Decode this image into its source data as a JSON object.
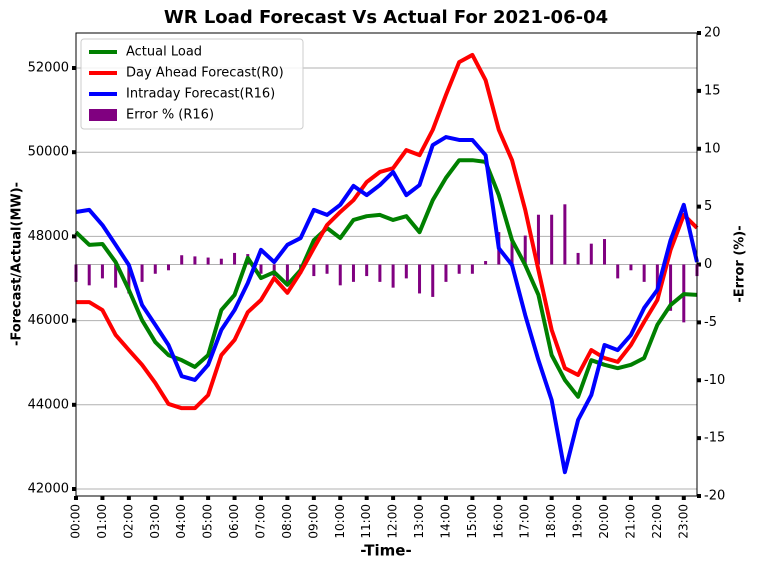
{
  "chart_data": {
    "type": "line",
    "title": "WR Load Forecast Vs Actual For 2021-06-04",
    "x_label": "-Time-",
    "y_label": "-Forecast/Actual(MW)-",
    "y2_label": "-Error (%)-",
    "categories": [
      "00:00",
      null,
      "01:00",
      null,
      "02:00",
      null,
      "03:00",
      null,
      "04:00",
      null,
      "05:00",
      null,
      "06:00",
      null,
      "07:00",
      null,
      "08:00",
      null,
      "09:00",
      null,
      "10:00",
      null,
      "11:00",
      null,
      "12:00",
      null,
      "13:00",
      null,
      "14:00",
      null,
      "15:00",
      null,
      "16:00",
      null,
      "17:00",
      null,
      "18:00",
      null,
      "19:00",
      null,
      "20:00",
      null,
      "21:00",
      null,
      "22:00",
      null,
      "23:00",
      null
    ],
    "ylim": [
      41834,
      52831
    ],
    "yticks": [
      42000,
      44000,
      46000,
      48000,
      50000,
      52000
    ],
    "y2lim": [
      -20,
      20
    ],
    "y2ticks": [
      -20,
      -15,
      -10,
      -5,
      0,
      5,
      10,
      15,
      20
    ],
    "grid": true,
    "legend": "upper left",
    "series": [
      {
        "name": "Actual Load",
        "color": "#008000",
        "values": [
          48100,
          47800,
          47820,
          47390,
          46730,
          46010,
          45490,
          45180,
          45060,
          44900,
          45180,
          46250,
          46610,
          47490,
          47010,
          47150,
          46850,
          47200,
          47910,
          48200,
          47960,
          48390,
          48480,
          48510,
          48390,
          48480,
          48100,
          48860,
          49390,
          49810,
          49810,
          49770,
          48980,
          47910,
          47320,
          46610,
          45180,
          44590,
          44190,
          45060,
          44950,
          44870,
          44950,
          45110,
          45900,
          46370,
          46630,
          46610
        ]
      },
      {
        "name": "Day Ahead Forecast(R0)",
        "color": "#ff0000",
        "values": [
          46440,
          46440,
          46250,
          45660,
          45300,
          44950,
          44520,
          44020,
          43920,
          43920,
          44230,
          45180,
          45540,
          46200,
          46490,
          47010,
          46660,
          47150,
          47720,
          48270,
          48580,
          48860,
          49290,
          49530,
          49620,
          50050,
          49930,
          50530,
          51360,
          52140,
          52310,
          51710,
          50530,
          49810,
          48630,
          47200,
          45780,
          44870,
          44710,
          45300,
          45110,
          45020,
          45420,
          45970,
          46490,
          47680,
          48510,
          48200
        ]
      },
      {
        "name": "Intraday Forecast(R16)",
        "color": "#0000ff",
        "values": [
          48580,
          48630,
          48270,
          47800,
          47320,
          46370,
          45900,
          45420,
          44680,
          44590,
          44950,
          45780,
          46250,
          46890,
          47680,
          47390,
          47800,
          47960,
          48630,
          48510,
          48750,
          49200,
          48980,
          49220,
          49530,
          48980,
          49220,
          50170,
          50360,
          50290,
          50290,
          49930,
          47720,
          47320,
          46130,
          45060,
          44110,
          42400,
          43640,
          44230,
          45420,
          45300,
          45660,
          46300,
          46730,
          47910,
          48750,
          47390
        ]
      },
      {
        "name": "Error % (R16)",
        "color": "#800080",
        "type": "bar",
        "axis": "y2",
        "values": [
          -1.5,
          -1.8,
          -1.2,
          -2.0,
          -2.5,
          -1.5,
          -0.8,
          -0.5,
          0.8,
          0.7,
          0.6,
          0.5,
          1.0,
          0.9,
          -0.8,
          -1.0,
          -1.5,
          -0.8,
          -1.0,
          -0.8,
          -1.8,
          -1.5,
          -1.0,
          -1.5,
          -2.0,
          -1.2,
          -2.5,
          -2.8,
          -1.5,
          -0.8,
          -0.8,
          0.3,
          2.8,
          2.0,
          2.5,
          4.3,
          4.3,
          5.2,
          1.0,
          1.8,
          2.2,
          -1.2,
          -0.5,
          -1.5,
          -2.5,
          -4.0,
          -5.0,
          -1.0
        ]
      }
    ]
  }
}
